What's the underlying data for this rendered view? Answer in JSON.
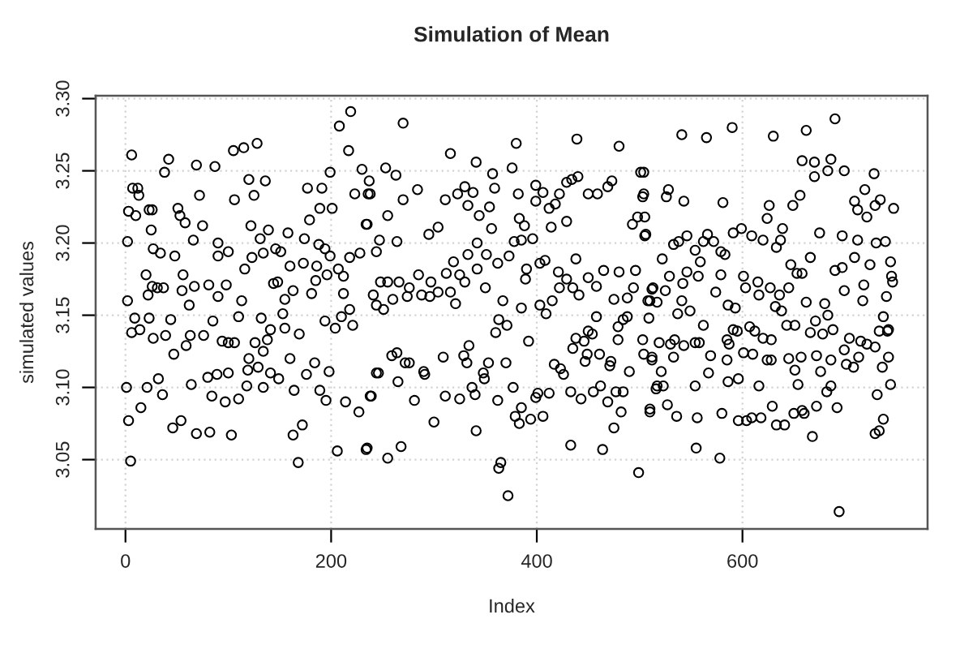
{
  "chart_data": {
    "type": "scatter",
    "title": "Simulation of Mean",
    "xlabel": "Index",
    "ylabel": "simulated values",
    "xlim": [
      -29,
      780
    ],
    "ylim": [
      3.002,
      3.302
    ],
    "xticks": [
      0,
      200,
      400,
      600
    ],
    "yticks": [
      3.05,
      {
        "value": 3.1,
        "label": "3.10"
      },
      3.15,
      {
        "value": 3.2,
        "label": "3.20"
      },
      3.25,
      {
        "value": 3.3,
        "label": "3.30"
      }
    ],
    "grid": true,
    "marker": "circle",
    "series": [
      {
        "color": "#000000",
        "x": [
          6,
          42,
          38,
          69,
          87,
          105,
          115,
          128,
          208,
          219,
          217,
          199,
          230,
          7,
          12,
          13,
          3,
          10,
          26,
          2,
          2,
          9,
          6,
          1,
          3,
          15,
          5,
          46,
          54,
          69,
          82,
          103,
          21,
          32,
          36,
          47,
          64,
          84,
          80,
          89,
          100,
          119,
          118,
          110,
          97,
          129,
          134,
          141,
          149,
          160,
          164,
          168,
          172,
          163,
          176,
          184,
          189,
          195,
          198,
          206,
          214,
          227,
          234,
          238,
          244,
          23,
          25,
          51,
          58,
          72,
          75,
          66,
          90,
          100,
          106,
          120,
          125,
          136,
          139,
          131,
          122,
          116,
          123,
          134,
          146,
          158,
          177,
          191,
          179,
          189,
          201,
          194,
          199,
          196,
          207,
          212,
          218,
          223,
          236,
          234,
          228,
          212,
          218,
          221,
          210,
          204,
          194,
          181,
          173,
          185,
          169,
          155,
          153,
          144,
          138,
          134,
          126,
          120,
          106,
          100,
          94,
          98,
          90,
          81,
          85,
          76,
          63,
          62,
          56,
          55,
          67,
          48,
          53,
          34,
          27,
          20,
          22,
          26,
          31,
          37,
          23,
          14,
          27,
          39,
          44,
          59,
          90,
          113,
          110,
          132,
          141,
          155,
          148,
          163,
          160,
          151,
          174,
          186,
          188,
          270,
          316,
          341,
          380,
          439,
          480,
          253,
          263,
          237,
          238,
          284,
          270,
          255,
          235,
          311,
          323,
          330,
          338,
          333,
          357,
          359,
          354,
          344,
          356,
          376,
          382,
          399,
          406,
          399,
          412,
          418,
          422,
          429,
          434,
          440,
          414,
          429,
          450,
          459,
          469,
          473,
          501,
          503,
          493,
          498,
          505,
          383,
          388,
          378,
          385,
          396,
          373,
          362,
          351,
          342,
          333,
          319,
          312,
          304,
          295,
          264,
          247,
          244,
          241,
          248,
          255,
          266,
          244,
          251,
          276,
          285,
          297,
          288,
          274,
          260,
          296,
          304,
          316,
          321,
          325,
          330,
          342,
          350,
          367,
          363,
          360,
          371,
          385,
          390,
          389,
          408,
          403,
          403,
          409,
          415,
          421,
          422,
          429,
          438,
          435,
          441,
          450,
          458,
          465,
          475,
          480,
          488,
          494,
          496,
          488,
          484,
          479,
          510,
          513,
          438,
          446,
          435,
          449,
          447,
          458,
          450,
          454,
          461,
          472,
          471,
          479,
          490,
          503,
          504,
          512,
          417,
          423,
          426,
          392,
          370,
          353,
          348,
          349,
          329,
          332,
          334,
          309,
          291,
          290,
          276,
          272,
          246,
          259,
          264,
          239,
          265,
          281,
          311,
          325,
          340,
          337,
          362,
          377,
          385,
          379,
          383,
          394,
          406,
          399,
          401,
          412,
          433,
          443,
          455,
          462,
          469,
          477,
          484,
          482,
          475,
          510,
          516,
          300,
          341,
          235,
          255,
          268,
          365,
          363,
          372,
          433,
          464,
          499,
          541,
          565,
          590,
          630,
          662,
          690,
          658,
          670,
          670,
          686,
          683,
          699,
          728,
          719,
          709,
          712,
          721,
          729,
          734,
          747,
          528,
          526,
          543,
          581,
          504,
          504,
          505,
          506,
          626,
          624,
          649,
          656,
          591,
          599,
          609,
          620,
          639,
          637,
          633,
          675,
          697,
          712,
          730,
          739,
          522,
          533,
          538,
          546,
          554,
          562,
          566,
          572,
          579,
          583,
          559,
          744,
          745,
          746,
          709,
          697,
          690,
          666,
          653,
          658,
          647,
          512,
          525,
          529,
          542,
          546,
          557,
          574,
          579,
          601,
          603,
          615,
          616,
          627,
          636,
          645,
          508,
          517,
          541,
          537,
          549,
          562,
          586,
          593,
          591,
          595,
          662,
          680,
          683,
          671,
          666,
          678,
          688,
          699,
          718,
          717,
          724,
          740,
          737,
          742,
          632,
          638,
          643,
          651,
          607,
          612,
          620,
          628,
          509,
          519,
          512,
          530,
          534,
          543,
          554,
          558,
          533,
          569,
          585,
          587,
          585,
          601,
          610,
          624,
          628,
          645,
          657,
          651,
          672,
          676,
          686,
          704,
          715,
          721,
          729,
          733,
          741,
          699,
          701,
          713,
          708,
          736,
          742,
          521,
          517,
          523,
          554,
          567,
          586,
          596,
          616,
          654,
          686,
          682,
          744,
          731,
          510,
          527,
          536,
          556,
          580,
          596,
          604,
          609,
          618,
          629,
          633,
          641,
          650,
          658,
          660,
          672,
          668,
          692,
          737,
          733,
          729,
          555,
          578,
          694
        ],
        "values": [
          3.261,
          3.258,
          3.249,
          3.254,
          3.253,
          3.264,
          3.266,
          3.269,
          3.281,
          3.291,
          3.264,
          3.249,
          3.251,
          3.238,
          3.238,
          3.233,
          3.222,
          3.219,
          3.223,
          3.201,
          3.16,
          3.148,
          3.138,
          3.1,
          3.077,
          3.086,
          3.049,
          3.072,
          3.077,
          3.068,
          3.069,
          3.067,
          3.1,
          3.106,
          3.095,
          3.123,
          3.102,
          3.094,
          3.107,
          3.109,
          3.11,
          3.112,
          3.101,
          3.092,
          3.09,
          3.114,
          3.1,
          3.11,
          3.106,
          3.12,
          3.098,
          3.048,
          3.074,
          3.067,
          3.109,
          3.117,
          3.098,
          3.091,
          3.111,
          3.056,
          3.09,
          3.083,
          3.057,
          3.094,
          3.11,
          3.223,
          3.209,
          3.224,
          3.214,
          3.233,
          3.212,
          3.202,
          3.2,
          3.194,
          3.23,
          3.244,
          3.233,
          3.243,
          3.209,
          3.203,
          3.212,
          3.182,
          3.19,
          3.193,
          3.196,
          3.207,
          3.238,
          3.238,
          3.216,
          3.224,
          3.224,
          3.196,
          3.191,
          3.178,
          3.182,
          3.177,
          3.19,
          3.234,
          3.234,
          3.213,
          3.193,
          3.165,
          3.154,
          3.143,
          3.149,
          3.141,
          3.146,
          3.165,
          3.186,
          3.174,
          3.137,
          3.141,
          3.151,
          3.172,
          3.133,
          3.125,
          3.131,
          3.12,
          3.131,
          3.131,
          3.132,
          3.171,
          3.163,
          3.171,
          3.146,
          3.136,
          3.136,
          3.157,
          3.178,
          3.167,
          3.17,
          3.191,
          3.219,
          3.193,
          3.196,
          3.178,
          3.164,
          3.17,
          3.169,
          3.169,
          3.148,
          3.14,
          3.134,
          3.136,
          3.147,
          3.129,
          3.191,
          3.16,
          3.149,
          3.148,
          3.14,
          3.161,
          3.173,
          3.167,
          3.184,
          3.194,
          3.203,
          3.184,
          3.199,
          3.283,
          3.262,
          3.256,
          3.269,
          3.272,
          3.267,
          3.252,
          3.247,
          3.243,
          3.234,
          3.237,
          3.23,
          3.219,
          3.213,
          3.23,
          3.234,
          3.239,
          3.235,
          3.226,
          3.248,
          3.238,
          3.225,
          3.219,
          3.21,
          3.252,
          3.234,
          3.24,
          3.235,
          3.229,
          3.224,
          3.227,
          3.234,
          3.242,
          3.244,
          3.246,
          3.211,
          3.215,
          3.234,
          3.234,
          3.239,
          3.243,
          3.249,
          3.232,
          3.213,
          3.218,
          3.205,
          3.217,
          3.212,
          3.201,
          3.202,
          3.203,
          3.191,
          3.186,
          3.192,
          3.2,
          3.192,
          3.187,
          3.179,
          3.211,
          3.206,
          3.201,
          3.202,
          3.194,
          3.164,
          3.173,
          3.173,
          3.173,
          3.157,
          3.154,
          3.169,
          3.178,
          3.173,
          3.164,
          3.163,
          3.161,
          3.163,
          3.166,
          3.166,
          3.158,
          3.178,
          3.173,
          3.182,
          3.169,
          3.16,
          3.147,
          3.138,
          3.143,
          3.155,
          3.182,
          3.175,
          3.188,
          3.186,
          3.157,
          3.151,
          3.16,
          3.18,
          3.169,
          3.175,
          3.189,
          3.169,
          3.164,
          3.176,
          3.17,
          3.181,
          3.161,
          3.18,
          3.162,
          3.169,
          3.181,
          3.149,
          3.147,
          3.142,
          3.16,
          3.169,
          3.134,
          3.132,
          3.127,
          3.123,
          3.118,
          3.149,
          3.139,
          3.137,
          3.123,
          3.118,
          3.115,
          3.133,
          3.111,
          3.133,
          3.123,
          3.121,
          3.116,
          3.113,
          3.109,
          3.132,
          3.117,
          3.117,
          3.11,
          3.106,
          3.122,
          3.117,
          3.129,
          3.121,
          3.109,
          3.111,
          3.117,
          3.117,
          3.11,
          3.122,
          3.124,
          3.094,
          3.104,
          3.091,
          3.094,
          3.092,
          3.095,
          3.1,
          3.091,
          3.1,
          3.086,
          3.08,
          3.075,
          3.078,
          3.08,
          3.093,
          3.096,
          3.096,
          3.097,
          3.092,
          3.097,
          3.101,
          3.09,
          3.097,
          3.097,
          3.083,
          3.072,
          3.083,
          3.099,
          3.076,
          3.07,
          3.058,
          3.051,
          3.059,
          3.048,
          3.044,
          3.025,
          3.06,
          3.057,
          3.041,
          3.275,
          3.273,
          3.28,
          3.274,
          3.278,
          3.286,
          3.257,
          3.256,
          3.246,
          3.258,
          3.25,
          3.25,
          3.248,
          3.237,
          3.229,
          3.223,
          3.218,
          3.226,
          3.23,
          3.224,
          3.237,
          3.232,
          3.229,
          3.228,
          3.249,
          3.234,
          3.218,
          3.206,
          3.226,
          3.217,
          3.226,
          3.233,
          3.207,
          3.21,
          3.205,
          3.202,
          3.21,
          3.202,
          3.197,
          3.207,
          3.205,
          3.202,
          3.2,
          3.201,
          3.189,
          3.199,
          3.201,
          3.205,
          3.195,
          3.201,
          3.206,
          3.201,
          3.194,
          3.192,
          3.187,
          3.187,
          3.177,
          3.173,
          3.19,
          3.183,
          3.181,
          3.19,
          3.179,
          3.179,
          3.185,
          3.168,
          3.167,
          3.177,
          3.172,
          3.18,
          3.177,
          3.166,
          3.178,
          3.177,
          3.169,
          3.173,
          3.164,
          3.169,
          3.164,
          3.169,
          3.16,
          3.159,
          3.16,
          3.151,
          3.153,
          3.143,
          3.157,
          3.155,
          3.14,
          3.139,
          3.159,
          3.158,
          3.15,
          3.146,
          3.138,
          3.137,
          3.14,
          3.167,
          3.171,
          3.16,
          3.185,
          3.163,
          3.149,
          3.14,
          3.156,
          3.153,
          3.143,
          3.143,
          3.142,
          3.139,
          3.134,
          3.133,
          3.148,
          3.131,
          3.119,
          3.13,
          3.133,
          3.129,
          3.131,
          3.131,
          3.121,
          3.122,
          3.133,
          3.13,
          3.119,
          3.124,
          3.123,
          3.119,
          3.119,
          3.12,
          3.121,
          3.112,
          3.122,
          3.111,
          3.119,
          3.134,
          3.132,
          3.13,
          3.128,
          3.139,
          3.139,
          3.126,
          3.116,
          3.121,
          3.114,
          3.114,
          3.121,
          3.111,
          3.101,
          3.101,
          3.101,
          3.11,
          3.104,
          3.106,
          3.101,
          3.102,
          3.101,
          3.097,
          3.102,
          3.095,
          3.085,
          3.088,
          3.08,
          3.079,
          3.082,
          3.077,
          3.077,
          3.079,
          3.079,
          3.087,
          3.074,
          3.074,
          3.082,
          3.084,
          3.082,
          3.087,
          3.066,
          3.086,
          3.078,
          3.07,
          3.068,
          3.058,
          3.051,
          3.014
        ]
      }
    ]
  }
}
